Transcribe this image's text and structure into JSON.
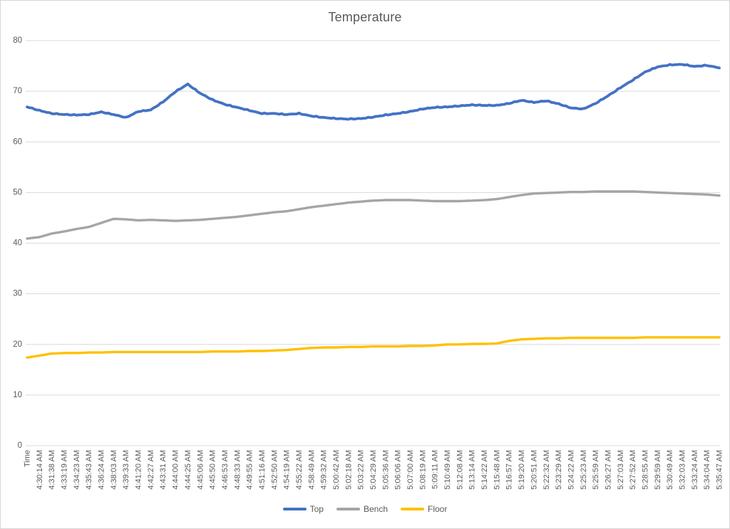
{
  "chart_data": {
    "type": "line",
    "title": "Temperature",
    "xlabel": "",
    "ylabel": "",
    "ylim": [
      0,
      80
    ],
    "ytick_step": 10,
    "y_ticks": [
      0,
      10,
      20,
      30,
      40,
      50,
      60,
      70,
      80
    ],
    "grid": "horizontal",
    "legend_position": "bottom",
    "x_label_rotation_deg": 90,
    "categories": [
      "Time",
      "4:30:14 AM",
      "4:31:38 AM",
      "4:33:19 AM",
      "4:34:23 AM",
      "4:35:43 AM",
      "4:36:24 AM",
      "4:38:03 AM",
      "4:39:33 AM",
      "4:41:20 AM",
      "4:42:27 AM",
      "4:43:31 AM",
      "4:44:00 AM",
      "4:44:25 AM",
      "4:45:06 AM",
      "4:45:50 AM",
      "4:46:53 AM",
      "4:48:33 AM",
      "4:49:55 AM",
      "4:51:16 AM",
      "4:52:50 AM",
      "4:54:19 AM",
      "4:55:22 AM",
      "4:58:49 AM",
      "4:59:32 AM",
      "5:00:42 AM",
      "5:02:18 AM",
      "5:03:22 AM",
      "5:04:29 AM",
      "5:05:36 AM",
      "5:06:06 AM",
      "5:07:00 AM",
      "5:08:19 AM",
      "5:09:11 AM",
      "5:10:49 AM",
      "5:12:08 AM",
      "5:13:14 AM",
      "5:14:22 AM",
      "5:15:48 AM",
      "5:16:57 AM",
      "5:19:20 AM",
      "5:20:51 AM",
      "5:22:32 AM",
      "5:23:29 AM",
      "5:24:22 AM",
      "5:25:23 AM",
      "5:25:59 AM",
      "5:26:27 AM",
      "5:27:03 AM",
      "5:27:52 AM",
      "5:28:55 AM",
      "5:29:59 AM",
      "5:30:49 AM",
      "5:32:03 AM",
      "5:33:24 AM",
      "5:34:04 AM",
      "5:35:47 AM"
    ],
    "series": [
      {
        "name": "Top",
        "color": "#4472C4",
        "values": [
          66.9,
          66.2,
          65.6,
          65.4,
          65.3,
          65.4,
          65.9,
          65.4,
          64.8,
          66.0,
          66.3,
          67.9,
          69.9,
          71.4,
          69.6,
          68.3,
          67.4,
          66.8,
          66.2,
          65.6,
          65.6,
          65.4,
          65.6,
          65.1,
          64.8,
          64.6,
          64.5,
          64.6,
          64.9,
          65.3,
          65.6,
          66.0,
          66.5,
          66.8,
          66.9,
          67.1,
          67.3,
          67.2,
          67.2,
          67.6,
          68.2,
          67.8,
          68.1,
          67.5,
          66.7,
          66.5,
          67.6,
          69.1,
          70.7,
          72.2,
          73.8,
          74.8,
          75.2,
          75.3,
          74.9,
          75.1,
          74.6
        ]
      },
      {
        "name": "Bench",
        "color": "#A5A5A5",
        "values": [
          40.9,
          41.2,
          41.9,
          42.3,
          42.8,
          43.2,
          44.0,
          44.8,
          44.7,
          44.5,
          44.6,
          44.5,
          44.4,
          44.5,
          44.6,
          44.8,
          45.0,
          45.2,
          45.5,
          45.8,
          46.1,
          46.3,
          46.7,
          47.1,
          47.4,
          47.7,
          48.0,
          48.2,
          48.4,
          48.5,
          48.5,
          48.5,
          48.4,
          48.3,
          48.3,
          48.3,
          48.4,
          48.5,
          48.7,
          49.1,
          49.5,
          49.8,
          49.9,
          50.0,
          50.1,
          50.1,
          50.2,
          50.2,
          50.2,
          50.2,
          50.1,
          50.0,
          49.9,
          49.8,
          49.7,
          49.6,
          49.4
        ]
      },
      {
        "name": "Floor",
        "color": "#FFC000",
        "values": [
          17.4,
          17.8,
          18.2,
          18.3,
          18.3,
          18.4,
          18.4,
          18.5,
          18.5,
          18.5,
          18.5,
          18.5,
          18.5,
          18.5,
          18.5,
          18.6,
          18.6,
          18.6,
          18.7,
          18.7,
          18.8,
          18.9,
          19.1,
          19.3,
          19.4,
          19.4,
          19.5,
          19.5,
          19.6,
          19.6,
          19.6,
          19.7,
          19.7,
          19.8,
          20.0,
          20.0,
          20.1,
          20.1,
          20.2,
          20.7,
          21.0,
          21.1,
          21.2,
          21.2,
          21.3,
          21.3,
          21.3,
          21.3,
          21.3,
          21.3,
          21.4,
          21.4,
          21.4,
          21.4,
          21.4,
          21.4,
          21.4
        ]
      }
    ]
  },
  "colors": {
    "text": "#595959",
    "gridline": "#D9D9D9",
    "axis_line": "#D9D9D9",
    "background": "#FFFFFF",
    "border": "#D6D6D6"
  }
}
